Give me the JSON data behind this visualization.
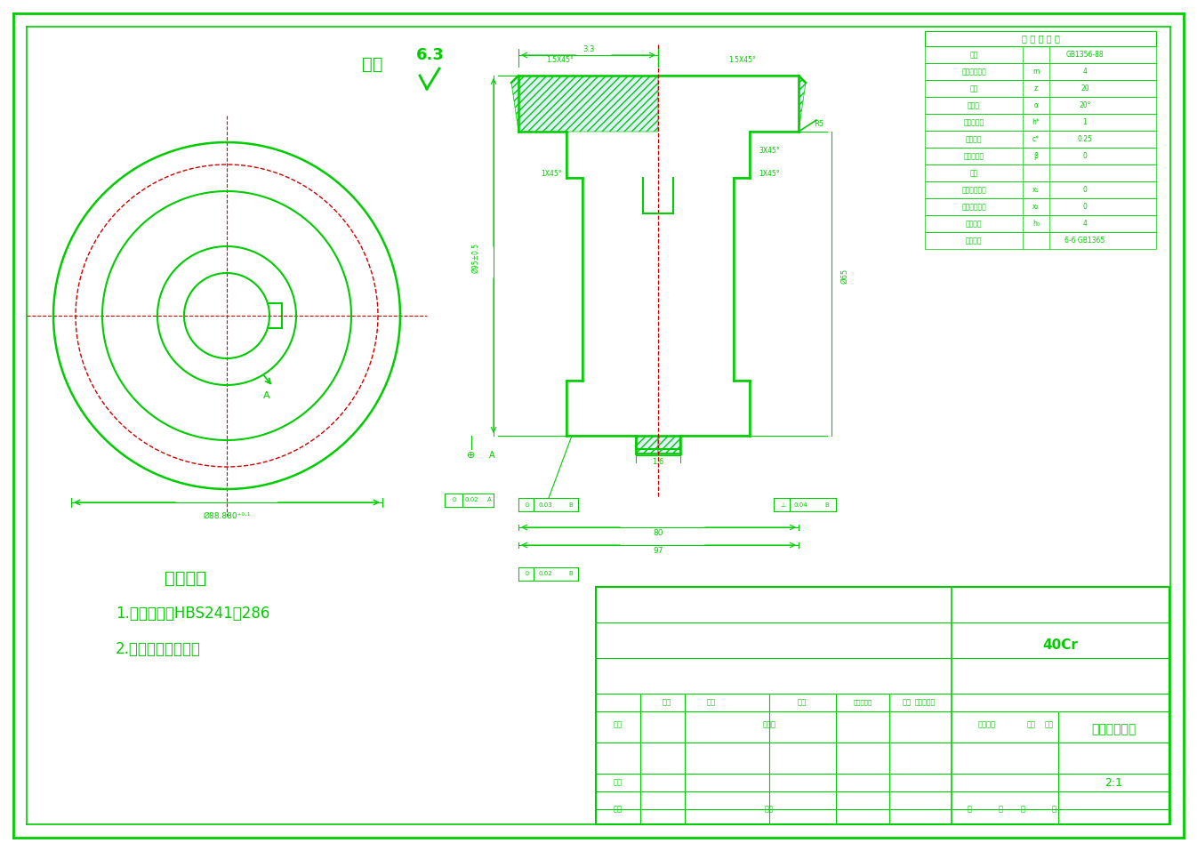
{
  "bg_color": "#ffffff",
  "border_color": "#00cc00",
  "line_color": "#00cc00",
  "red_color": "#cc0000",
  "hatch_color": "#00aaff",
  "title": "翻转机小齿轮",
  "material": "40Cr",
  "scale": "2:1",
  "tech_req_1": "技术要求",
  "tech_req_2": "1.调质处理，HBS241至286",
  "tech_req_3": "2.去除毛刺，抛光。",
  "gear_table_title": "齿 轮 参 数 表",
  "gear_params": [
    [
      "齿制",
      "",
      "GB1356-88"
    ],
    [
      "大端端面模数",
      "m",
      "4"
    ],
    [
      "齿数",
      "z",
      "20"
    ],
    [
      "螺旋角",
      "α",
      "20°"
    ],
    [
      "齿顶高系数",
      "h*",
      "1"
    ],
    [
      "顶隙系数",
      "c*",
      "0.25"
    ],
    [
      "中心距精度",
      "β",
      "0"
    ],
    [
      "齿向",
      "",
      ""
    ],
    [
      "径向变位系数",
      "x₁",
      "0"
    ],
    [
      "径向变位系数",
      "x₂",
      "0"
    ],
    [
      "大端齿高",
      "h₀",
      "4"
    ],
    [
      "精度等级",
      "",
      "6-6 GB1365"
    ]
  ],
  "roughness_text": "其余",
  "roughness_val": "6.3"
}
